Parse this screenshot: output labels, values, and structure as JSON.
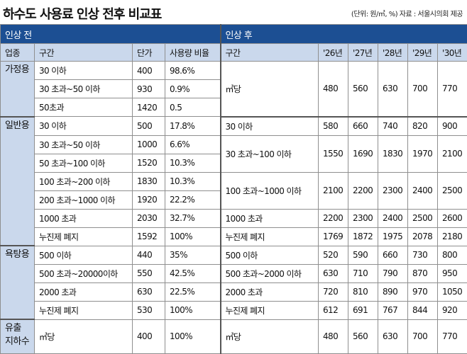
{
  "title": "하수도 사용료 인상 전후 비교표",
  "note": "(단위: 원/㎥, %) 자료 : 서울시의회 제공",
  "header": {
    "before": "인상 전",
    "after": "인상 후",
    "cols_before": [
      "업종",
      "구간",
      "단가",
      "사용량 비율"
    ],
    "cols_after": [
      "구간",
      "'26년",
      "'27년",
      "'28년",
      "'29년",
      "'30년"
    ]
  },
  "groups": {
    "household": {
      "name": "가정용",
      "rows": [
        {
          "range": "30 이하",
          "price": "400",
          "ratio": "98.6%"
        },
        {
          "range": "30 초과~50 이하",
          "price": "930",
          "ratio": "0.9%"
        },
        {
          "range": "50초과",
          "price": "1420",
          "ratio": "0.5"
        }
      ],
      "after": [
        {
          "range": "㎥당",
          "y26": "480",
          "y27": "560",
          "y28": "630",
          "y29": "700",
          "y30": "770"
        }
      ]
    },
    "general": {
      "name": "일반용",
      "rows": [
        {
          "range": "30 이하",
          "price": "500",
          "ratio": "17.8%"
        },
        {
          "range": "30 초과~50 이하",
          "price": "1000",
          "ratio": "6.6%"
        },
        {
          "range": "50 초과~100 이하",
          "price": "1520",
          "ratio": "10.3%"
        },
        {
          "range": "100 초과~200 이하",
          "price": "1830",
          "ratio": "10.3%"
        },
        {
          "range": "200 초과~1000 이하",
          "price": "1920",
          "ratio": "22.2%"
        },
        {
          "range": "1000 초과",
          "price": "2030",
          "ratio": "32.7%"
        },
        {
          "range": "누진제 폐지",
          "price": "1592",
          "ratio": "100%"
        }
      ],
      "after": [
        {
          "range": "30 이하",
          "y26": "580",
          "y27": "660",
          "y28": "740",
          "y29": "820",
          "y30": "900"
        },
        {
          "range": "30 초과~100 이하",
          "y26": "1550",
          "y27": "1690",
          "y28": "1830",
          "y29": "1970",
          "y30": "2100"
        },
        {
          "range": "100 초과~1000 이하",
          "y26": "2100",
          "y27": "2200",
          "y28": "2300",
          "y29": "2400",
          "y30": "2500"
        },
        {
          "range": "1000 초과",
          "y26": "2200",
          "y27": "2300",
          "y28": "2400",
          "y29": "2500",
          "y30": "2600"
        },
        {
          "range": "누진제 폐지",
          "y26": "1769",
          "y27": "1872",
          "y28": "1975",
          "y29": "2078",
          "y30": "2180"
        }
      ]
    },
    "bath": {
      "name": "욕탕용",
      "rows": [
        {
          "range": "500 이하",
          "price": "440",
          "ratio": "35%"
        },
        {
          "range": "500 초과~20000이하",
          "price": "550",
          "ratio": "42.5%"
        },
        {
          "range": "2000 초과",
          "price": "630",
          "ratio": "22.5%"
        },
        {
          "range": "누진제 폐지",
          "price": "530",
          "ratio": "100%"
        }
      ],
      "after": [
        {
          "range": "500 이하",
          "y26": "520",
          "y27": "590",
          "y28": "660",
          "y29": "730",
          "y30": "800"
        },
        {
          "range": "500 초과~2000 이하",
          "y26": "630",
          "y27": "710",
          "y28": "790",
          "y29": "870",
          "y30": "950"
        },
        {
          "range": "2000 초과",
          "y26": "720",
          "y27": "810",
          "y28": "890",
          "y29": "970",
          "y30": "1050"
        },
        {
          "range": "누진제 폐지",
          "y26": "612",
          "y27": "691",
          "y28": "767",
          "y29": "844",
          "y30": "920"
        }
      ]
    },
    "groundwater": {
      "name_line1": "유출",
      "name_line2": "지하수",
      "row": {
        "range": "㎥당",
        "price": "400",
        "ratio": "100%"
      },
      "after": {
        "range": "㎥당",
        "y26": "480",
        "y27": "560",
        "y28": "630",
        "y29": "700",
        "y30": "770"
      }
    }
  }
}
